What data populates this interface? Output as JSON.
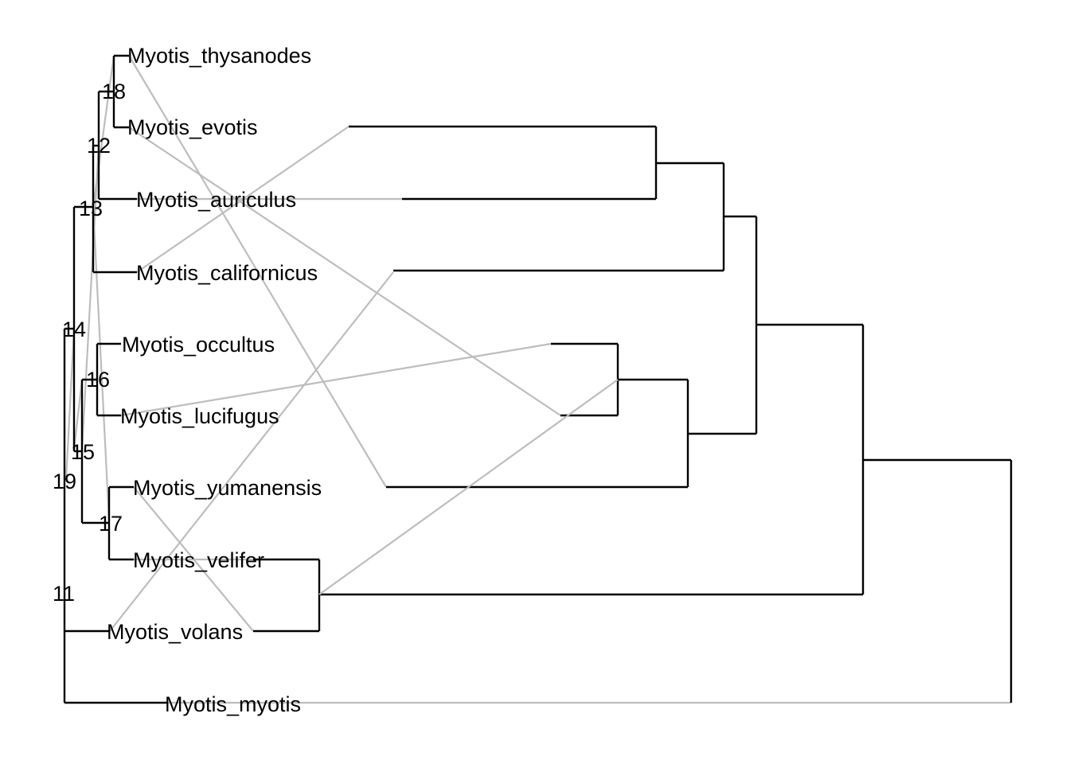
{
  "diagram": {
    "type": "tanglegram",
    "colors": {
      "tree": "#000000",
      "links": "#bdbdbd",
      "background": "#ffffff"
    },
    "taxa": [
      "Myotis_thysanodes",
      "Myotis_evotis",
      "Myotis_auriculus",
      "Myotis_californicus",
      "Myotis_occultus",
      "Myotis_lucifugus",
      "Myotis_yumanensis",
      "Myotis_velifer",
      "Myotis_volans",
      "Myotis_myotis"
    ],
    "node_labels": [
      "18",
      "12",
      "13",
      "14",
      "16",
      "15",
      "19",
      "17",
      "11"
    ],
    "right_tree_order": [
      "Myotis_californicus",
      "Myotis_auriculus",
      "Myotis_evotis",
      "Myotis_volans",
      "Myotis_occultus",
      "Myotis_lucifugus",
      "Myotis_thysanodes",
      "Myotis_yumanensis",
      "Myotis_velifer",
      "Myotis_myotis"
    ]
  }
}
